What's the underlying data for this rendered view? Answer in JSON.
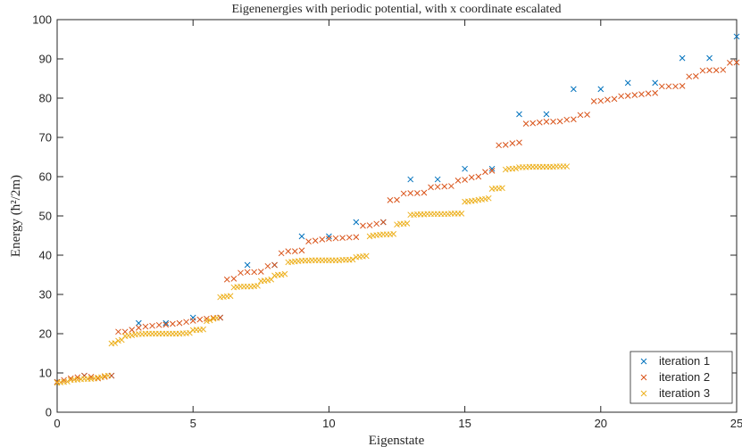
{
  "chart_data": {
    "type": "scatter",
    "title": "Eigenenergies with periodic potential, with x coordinate escalated",
    "x_label": "Eigenstate",
    "y_label": "Energy (ħ²/2m)",
    "xlim": [
      0,
      25
    ],
    "xticks": [
      0,
      5,
      10,
      15,
      20,
      25
    ],
    "ylim": [
      0,
      100
    ],
    "yticks": [
      0,
      10,
      20,
      30,
      40,
      50,
      60,
      70,
      80,
      90,
      100
    ],
    "grid": false,
    "legend": "southeast",
    "marker": "x",
    "series": [
      {
        "name": "iteration 1",
        "color": "#0072BD",
        "x": [
          0,
          1,
          2,
          3,
          4,
          5,
          6,
          7,
          8,
          9,
          10,
          11,
          12,
          13,
          14,
          15,
          16,
          17,
          18,
          19,
          20,
          21,
          22,
          23,
          24,
          25
        ],
        "values": [
          7.7,
          9.3,
          9.3,
          22.7,
          22.7,
          24.1,
          24.1,
          37.5,
          37.5,
          44.8,
          44.8,
          48.4,
          48.4,
          59.3,
          59.3,
          62.0,
          62.0,
          75.9,
          75.9,
          82.3,
          82.3,
          83.9,
          83.9,
          90.2,
          90.2,
          95.7
        ]
      },
      {
        "name": "iteration 2",
        "color": "#D95319",
        "x": [
          0,
          0.25,
          0.5,
          0.75,
          1,
          1.25,
          1.5,
          1.75,
          2,
          2.25,
          2.5,
          2.75,
          3,
          3.25,
          3.5,
          3.75,
          4,
          4.25,
          4.5,
          4.75,
          5,
          5.25,
          5.5,
          5.75,
          6,
          6.25,
          6.5,
          6.75,
          7,
          7.25,
          7.5,
          7.75,
          8,
          8.25,
          8.5,
          8.75,
          9,
          9.25,
          9.5,
          9.75,
          10,
          10.25,
          10.5,
          10.75,
          11,
          11.25,
          11.5,
          11.75,
          12,
          12.25,
          12.5,
          12.75,
          13,
          13.25,
          13.5,
          13.75,
          14,
          14.25,
          14.5,
          14.75,
          15,
          15.25,
          15.5,
          15.75,
          16,
          16.25,
          16.5,
          16.75,
          17,
          17.25,
          17.5,
          17.75,
          18,
          18.25,
          18.5,
          18.75,
          19,
          19.25,
          19.5,
          19.75,
          20,
          20.25,
          20.5,
          20.75,
          21,
          21.25,
          21.5,
          21.75,
          22,
          22.25,
          22.5,
          22.75,
          23,
          23.25,
          23.5,
          23.75,
          24,
          24.25,
          24.5,
          24.75,
          25
        ],
        "values": [
          7.7,
          8.2,
          8.6,
          8.9,
          9.3,
          9.0,
          8.6,
          9.0,
          9.3,
          20.5,
          20.5,
          21,
          21.5,
          21.8,
          22,
          22.2,
          22.3,
          22.5,
          22.7,
          23,
          23.3,
          23.6,
          23.8,
          24,
          24.1,
          33.8,
          34,
          35.5,
          35.7,
          35.7,
          35.8,
          37.2,
          37.5,
          40.5,
          41,
          41,
          41.2,
          43.5,
          43.7,
          44,
          44.2,
          44.3,
          44.4,
          44.5,
          44.6,
          47.5,
          47.6,
          48,
          48.4,
          54,
          54.1,
          55.7,
          55.8,
          55.8,
          55.9,
          57.3,
          57.4,
          57.5,
          57.6,
          59,
          59.2,
          59.8,
          60,
          61.2,
          61.5,
          68,
          68.1,
          68.5,
          68.7,
          73.5,
          73.6,
          73.8,
          74,
          74,
          74.1,
          74.5,
          74.6,
          75.7,
          75.8,
          79.2,
          79.3,
          79.6,
          79.8,
          80.5,
          80.6,
          80.8,
          81,
          81.2,
          81.3,
          83,
          83,
          83,
          83.1,
          85.5,
          85.6,
          87,
          87.1,
          87.1,
          87.2,
          89,
          89.1
        ]
      },
      {
        "name": "iteration 3",
        "color": "#EDB120",
        "x": [
          0,
          0.125,
          0.25,
          0.375,
          0.5,
          0.625,
          0.75,
          0.875,
          1,
          1.125,
          1.25,
          1.375,
          1.5,
          1.625,
          1.75,
          1.875,
          2,
          2.125,
          2.25,
          2.375,
          2.5,
          2.625,
          2.75,
          2.875,
          3,
          3.125,
          3.25,
          3.375,
          3.5,
          3.625,
          3.75,
          3.875,
          4,
          4.125,
          4.25,
          4.375,
          4.5,
          4.625,
          4.75,
          4.875,
          5,
          5.125,
          5.25,
          5.375,
          5.5,
          5.625,
          5.75,
          5.875,
          6,
          6.125,
          6.25,
          6.375,
          6.5,
          6.625,
          6.75,
          6.875,
          7,
          7.125,
          7.25,
          7.375,
          7.5,
          7.625,
          7.75,
          7.875,
          8,
          8.125,
          8.25,
          8.375,
          8.5,
          8.625,
          8.75,
          8.875,
          9,
          9.125,
          9.25,
          9.375,
          9.5,
          9.625,
          9.75,
          9.875,
          10,
          10.125,
          10.25,
          10.375,
          10.5,
          10.625,
          10.75,
          10.875,
          11,
          11.125,
          11.25,
          11.375,
          11.5,
          11.625,
          11.75,
          11.875,
          12,
          12.125,
          12.25,
          12.375,
          12.5,
          12.625,
          12.75,
          12.875,
          13,
          13.125,
          13.25,
          13.375,
          13.5,
          13.625,
          13.75,
          13.875,
          14,
          14.125,
          14.25,
          14.375,
          14.5,
          14.625,
          14.75,
          14.875,
          15,
          15.125,
          15.25,
          15.375,
          15.5,
          15.625,
          15.75,
          15.875,
          16,
          16.125,
          16.25,
          16.375,
          16.5,
          16.625,
          16.75,
          16.875,
          17,
          17.125,
          17.25,
          17.375,
          17.5,
          17.625,
          17.75,
          17.875,
          18,
          18.125,
          18.25,
          18.375,
          18.5,
          18.625,
          18.75
        ],
        "values": [
          7.5,
          7.6,
          7.7,
          7.8,
          8.2,
          8.3,
          8.3,
          8.4,
          8.5,
          8.5,
          8.5,
          8.6,
          8.8,
          8.9,
          9.2,
          9.3,
          17.5,
          17.6,
          18.2,
          18.4,
          19.4,
          19.5,
          19.6,
          19.8,
          19.9,
          19.9,
          20,
          20,
          20,
          20,
          20,
          20,
          20,
          20,
          20,
          20,
          20,
          20.1,
          20.1,
          20.2,
          20.9,
          21,
          21,
          21.1,
          23.2,
          23.4,
          23.8,
          24,
          29.3,
          29.4,
          29.5,
          29.6,
          31.8,
          31.9,
          32,
          32,
          32,
          32,
          32.1,
          32.2,
          33.4,
          33.5,
          33.6,
          33.8,
          34.8,
          35,
          35,
          35.2,
          38.2,
          38.3,
          38.4,
          38.5,
          38.6,
          38.6,
          38.6,
          38.7,
          38.7,
          38.7,
          38.7,
          38.7,
          38.7,
          38.7,
          38.7,
          38.7,
          38.8,
          38.8,
          38.8,
          38.9,
          39.5,
          39.6,
          39.7,
          39.8,
          44.8,
          45,
          45.1,
          45.2,
          45.3,
          45.3,
          45.3,
          45.4,
          47.8,
          48,
          48,
          48.1,
          50.3,
          50.3,
          50.4,
          50.4,
          50.4,
          50.5,
          50.5,
          50.5,
          50.5,
          50.5,
          50.5,
          50.5,
          50.6,
          50.6,
          50.6,
          50.6,
          53.6,
          53.7,
          53.8,
          53.9,
          54.1,
          54.2,
          54.3,
          54.5,
          56.9,
          57,
          57,
          57.1,
          61.8,
          62,
          62,
          62.1,
          62.4,
          62.4,
          62.4,
          62.5,
          62.5,
          62.5,
          62.5,
          62.5,
          62.5,
          62.5,
          62.5,
          62.6,
          62.6,
          62.6,
          62.6
        ]
      }
    ]
  }
}
